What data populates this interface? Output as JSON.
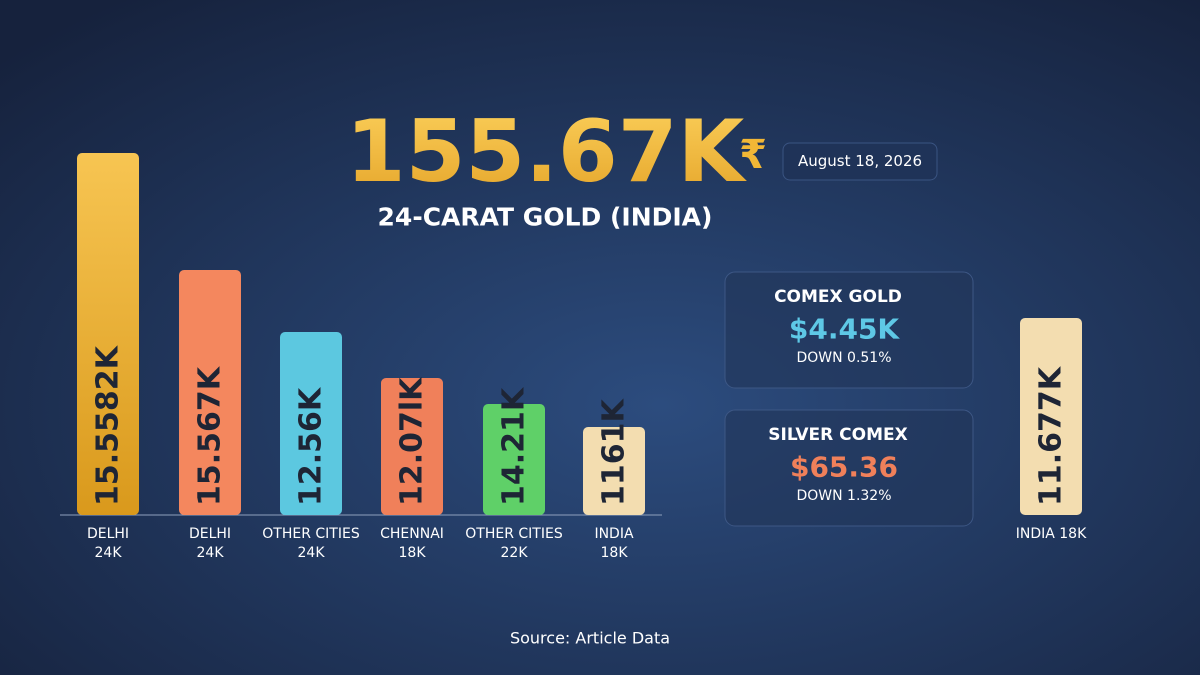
{
  "headline": {
    "value": "155.67K",
    "currency": "₹",
    "date": "August 18, 2026",
    "subtitle": "24-CARAT GOLD (INDIA)"
  },
  "bars": [
    {
      "label": "15.5582K",
      "category": [
        "DELHI",
        "24K"
      ]
    },
    {
      "label": "15.567K",
      "category": [
        "DELHI",
        "24K"
      ]
    },
    {
      "label": "12.56K",
      "category": [
        "OTHER CITIES",
        "24K"
      ]
    },
    {
      "label": "12.07lK",
      "category": [
        "CHENNAI",
        "18K"
      ]
    },
    {
      "label": "14.21K",
      "category": [
        "OTHER CITIES",
        "22K"
      ]
    },
    {
      "label": "1161K",
      "category": [
        "INDIA",
        "18K"
      ]
    }
  ],
  "cards": [
    {
      "title": "COMEX GOLD",
      "value": "$4.45K",
      "change": "DOWN 0.51%"
    },
    {
      "title": "SILVER COMEX",
      "value": "$65.36",
      "change": "DOWN 1.32%"
    }
  ],
  "side_bar": {
    "label": "11.677K",
    "category": [
      "INDIA 18K"
    ]
  },
  "source": "Source: Article Data"
}
